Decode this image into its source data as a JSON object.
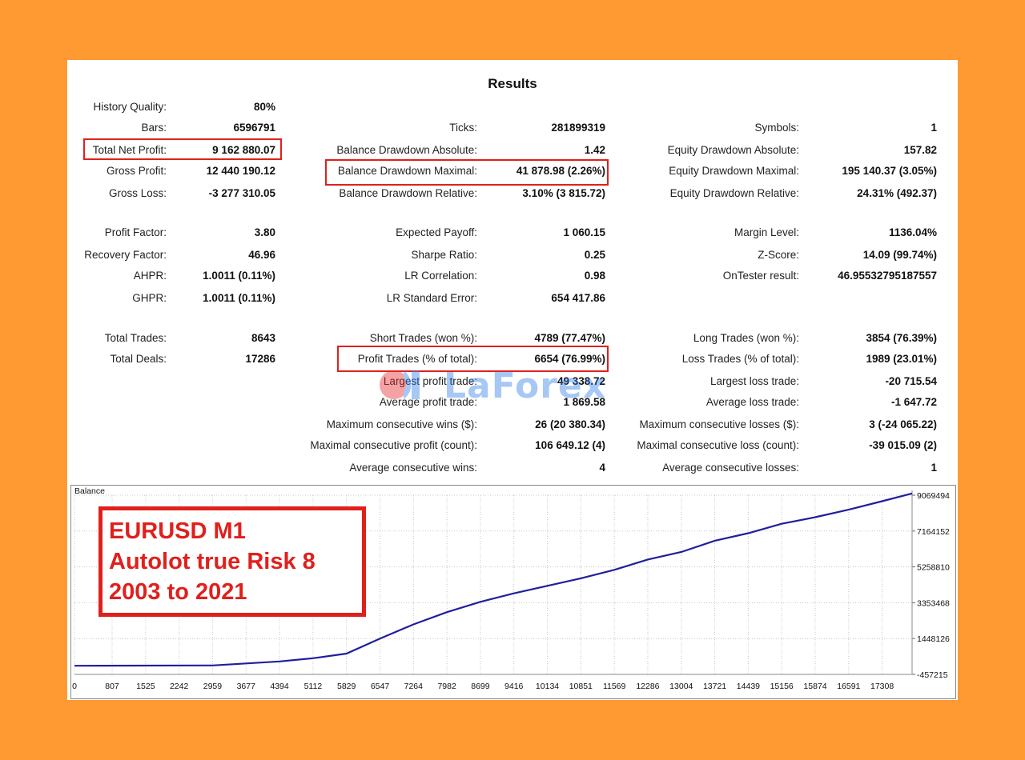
{
  "report": {
    "title": "Results",
    "stats": {
      "history_quality": {
        "label": "History Quality:",
        "value": "80%"
      },
      "bars": {
        "label": "Bars:",
        "value": "6596791"
      },
      "total_net_profit": {
        "label": "Total Net Profit:",
        "value": "9 162 880.07"
      },
      "gross_profit": {
        "label": "Gross Profit:",
        "value": "12 440 190.12"
      },
      "gross_loss": {
        "label": "Gross Loss:",
        "value": "-3 277 310.05"
      },
      "profit_factor": {
        "label": "Profit Factor:",
        "value": "3.80"
      },
      "recovery_factor": {
        "label": "Recovery Factor:",
        "value": "46.96"
      },
      "ahpr": {
        "label": "AHPR:",
        "value": "1.0011 (0.11%)"
      },
      "ghpr": {
        "label": "GHPR:",
        "value": "1.0011 (0.11%)"
      },
      "total_trades": {
        "label": "Total Trades:",
        "value": "8643"
      },
      "total_deals": {
        "label": "Total Deals:",
        "value": "17286"
      },
      "ticks": {
        "label": "Ticks:",
        "value": "281899319"
      },
      "balance_dd_abs": {
        "label": "Balance Drawdown Absolute:",
        "value": "1.42"
      },
      "balance_dd_max": {
        "label": "Balance Drawdown Maximal:",
        "value": "41 878.98 (2.26%)"
      },
      "balance_dd_rel": {
        "label": "Balance Drawdown Relative:",
        "value": "3.10% (3 815.72)"
      },
      "expected_payoff": {
        "label": "Expected Payoff:",
        "value": "1 060.15"
      },
      "sharpe_ratio": {
        "label": "Sharpe Ratio:",
        "value": "0.25"
      },
      "lr_correlation": {
        "label": "LR Correlation:",
        "value": "0.98"
      },
      "lr_std_error": {
        "label": "LR Standard Error:",
        "value": "654 417.86"
      },
      "short_trades": {
        "label": "Short Trades (won %):",
        "value": "4789 (77.47%)"
      },
      "profit_trades": {
        "label": "Profit Trades (% of total):",
        "value": "6654 (76.99%)"
      },
      "largest_profit_trade": {
        "label": "Largest profit trade:",
        "value": "49 338.72"
      },
      "average_profit_trade": {
        "label": "Average profit trade:",
        "value": "1 869.58"
      },
      "max_consec_wins": {
        "label": "Maximum consecutive wins ($):",
        "value": "26 (20 380.34)"
      },
      "maximal_consec_profit": {
        "label": "Maximal consecutive profit (count):",
        "value": "106 649.12 (4)"
      },
      "avg_consec_wins": {
        "label": "Average consecutive wins:",
        "value": "4"
      },
      "symbols": {
        "label": "Symbols:",
        "value": "1"
      },
      "equity_dd_abs": {
        "label": "Equity Drawdown Absolute:",
        "value": "157.82"
      },
      "equity_dd_max": {
        "label": "Equity Drawdown Maximal:",
        "value": "195 140.37 (3.05%)"
      },
      "equity_dd_rel": {
        "label": "Equity Drawdown Relative:",
        "value": "24.31% (492.37)"
      },
      "margin_level": {
        "label": "Margin Level:",
        "value": "1136.04%"
      },
      "z_score": {
        "label": "Z-Score:",
        "value": "14.09 (99.74%)"
      },
      "ontester_result": {
        "label": "OnTester result:",
        "value": "46.95532795187557"
      },
      "long_trades": {
        "label": "Long Trades (won %):",
        "value": "3854 (76.39%)"
      },
      "loss_trades": {
        "label": "Loss Trades (% of total):",
        "value": "1989 (23.01%)"
      },
      "largest_loss_trade": {
        "label": "Largest loss trade:",
        "value": "-20 715.54"
      },
      "average_loss_trade": {
        "label": "Average loss trade:",
        "value": "-1 647.72"
      },
      "max_consec_losses": {
        "label": "Maximum consecutive losses ($):",
        "value": "3 (-24 065.22)"
      },
      "maximal_consec_loss": {
        "label": "Maximal consecutive loss (count):",
        "value": "-39 015.09 (2)"
      },
      "avg_consec_losses": {
        "label": "Average consecutive losses:",
        "value": "1"
      }
    }
  },
  "watermark": {
    "text": "LaForex"
  },
  "annotation": {
    "line1": "EURUSD M1",
    "line2": "Autolot true Risk 8",
    "line3": "2003 to 2021",
    "color": "#E0201C"
  },
  "colors": {
    "background": "#FF9A33",
    "highlight": "#E0201C",
    "balance_line": "#1F1F9E"
  },
  "chart_data": {
    "type": "line",
    "title": "Balance",
    "x_ticks": [
      "0",
      "807",
      "1525",
      "2242",
      "2959",
      "3677",
      "4394",
      "5112",
      "5829",
      "6547",
      "7264",
      "7982",
      "8699",
      "9416",
      "10134",
      "10851",
      "11569",
      "12286",
      "13004",
      "13721",
      "14439",
      "15156",
      "15874",
      "16591",
      "17308"
    ],
    "y_ticks": [
      "9069494",
      "7164152",
      "5258810",
      "3353468",
      "1448126",
      "-457215"
    ],
    "ylim": [
      -457215,
      9069494
    ],
    "xlim": [
      0,
      17950
    ],
    "series": [
      {
        "x": [
          0,
          2959,
          4394,
          5112,
          5829,
          6547,
          7264,
          7982,
          8699,
          9416,
          10134,
          10851,
          11569,
          12286,
          13004,
          13721,
          14439,
          15156,
          15874,
          16591,
          17308,
          17950
        ],
        "y": [
          0,
          20000,
          230000,
          400000,
          650000,
          1450000,
          2200000,
          2850000,
          3400000,
          3850000,
          4250000,
          4650000,
          5100000,
          5650000,
          6050000,
          6650000,
          7050000,
          7550000,
          7900000,
          8300000,
          8750000,
          9162880
        ]
      }
    ]
  }
}
